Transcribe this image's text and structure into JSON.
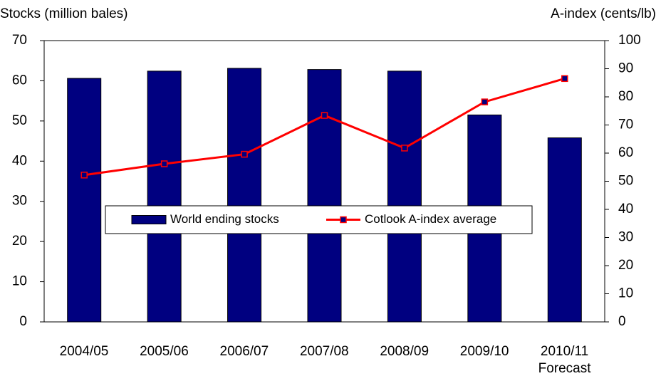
{
  "chart_data": {
    "type": "bar_line",
    "y_label": "Stocks (million bales)",
    "y2_label": "A-index  (cents/lb)",
    "categories": [
      "2004/05",
      "2005/06",
      "2006/07",
      "2007/08",
      "2008/09",
      "2009/10",
      "2010/11\nForecast"
    ],
    "series": [
      {
        "name": "World ending stocks",
        "type": "bar",
        "color": "#000080",
        "values": [
          60.6,
          62.4,
          63.1,
          62.8,
          62.4,
          51.5,
          45.8
        ]
      },
      {
        "name": "Cotlook A-index average",
        "type": "line",
        "axis": "y2",
        "color": "#ff0000",
        "marker_color": "#000080",
        "values": [
          52.2,
          56.2,
          59.6,
          73.4,
          61.8,
          78.2,
          86.5
        ]
      }
    ],
    "ylim": [
      0,
      70
    ],
    "yticks": [
      0,
      10,
      20,
      30,
      40,
      50,
      60,
      70
    ],
    "y2lim": [
      0,
      100
    ],
    "y2ticks": [
      0,
      10,
      20,
      30,
      40,
      50,
      60,
      70,
      80,
      90,
      100
    ],
    "legend": "center"
  }
}
